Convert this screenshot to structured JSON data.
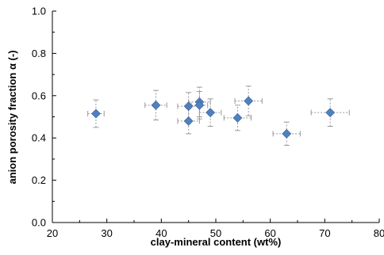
{
  "chart_data": {
    "type": "scatter",
    "xlabel": "clay-mineral content (wt%)",
    "ylabel": "anion  porosity fraction α (-)",
    "xlim": [
      20,
      80
    ],
    "ylim": [
      0.0,
      1.0
    ],
    "x_ticks": [
      "20",
      "30",
      "40",
      "50",
      "60",
      "70",
      "80"
    ],
    "y_ticks": [
      "0.0",
      "0.2",
      "0.4",
      "0.6",
      "0.8",
      "1.0"
    ],
    "grid": false,
    "legend": "none",
    "marker_color": "#4f81bd",
    "errorbar_color": "#9a9a9a",
    "points": [
      {
        "x": 28,
        "y": 0.515,
        "xerr": 1.5,
        "yerr": 0.065
      },
      {
        "x": 39,
        "y": 0.555,
        "xerr": 2.0,
        "yerr": 0.07
      },
      {
        "x": 45,
        "y": 0.55,
        "xerr": 2.0,
        "yerr": 0.065
      },
      {
        "x": 45,
        "y": 0.48,
        "xerr": 2.0,
        "yerr": 0.06
      },
      {
        "x": 47,
        "y": 0.57,
        "xerr": 2.0,
        "yerr": 0.07
      },
      {
        "x": 47,
        "y": 0.555,
        "xerr": 1.5,
        "yerr": 0.065
      },
      {
        "x": 49,
        "y": 0.52,
        "xerr": 2.0,
        "yerr": 0.065
      },
      {
        "x": 54,
        "y": 0.495,
        "xerr": 2.5,
        "yerr": 0.06
      },
      {
        "x": 56,
        "y": 0.575,
        "xerr": 2.5,
        "yerr": 0.07
      },
      {
        "x": 63,
        "y": 0.42,
        "xerr": 2.5,
        "yerr": 0.055
      },
      {
        "x": 71,
        "y": 0.52,
        "xerr": 3.5,
        "yerr": 0.065
      }
    ]
  }
}
